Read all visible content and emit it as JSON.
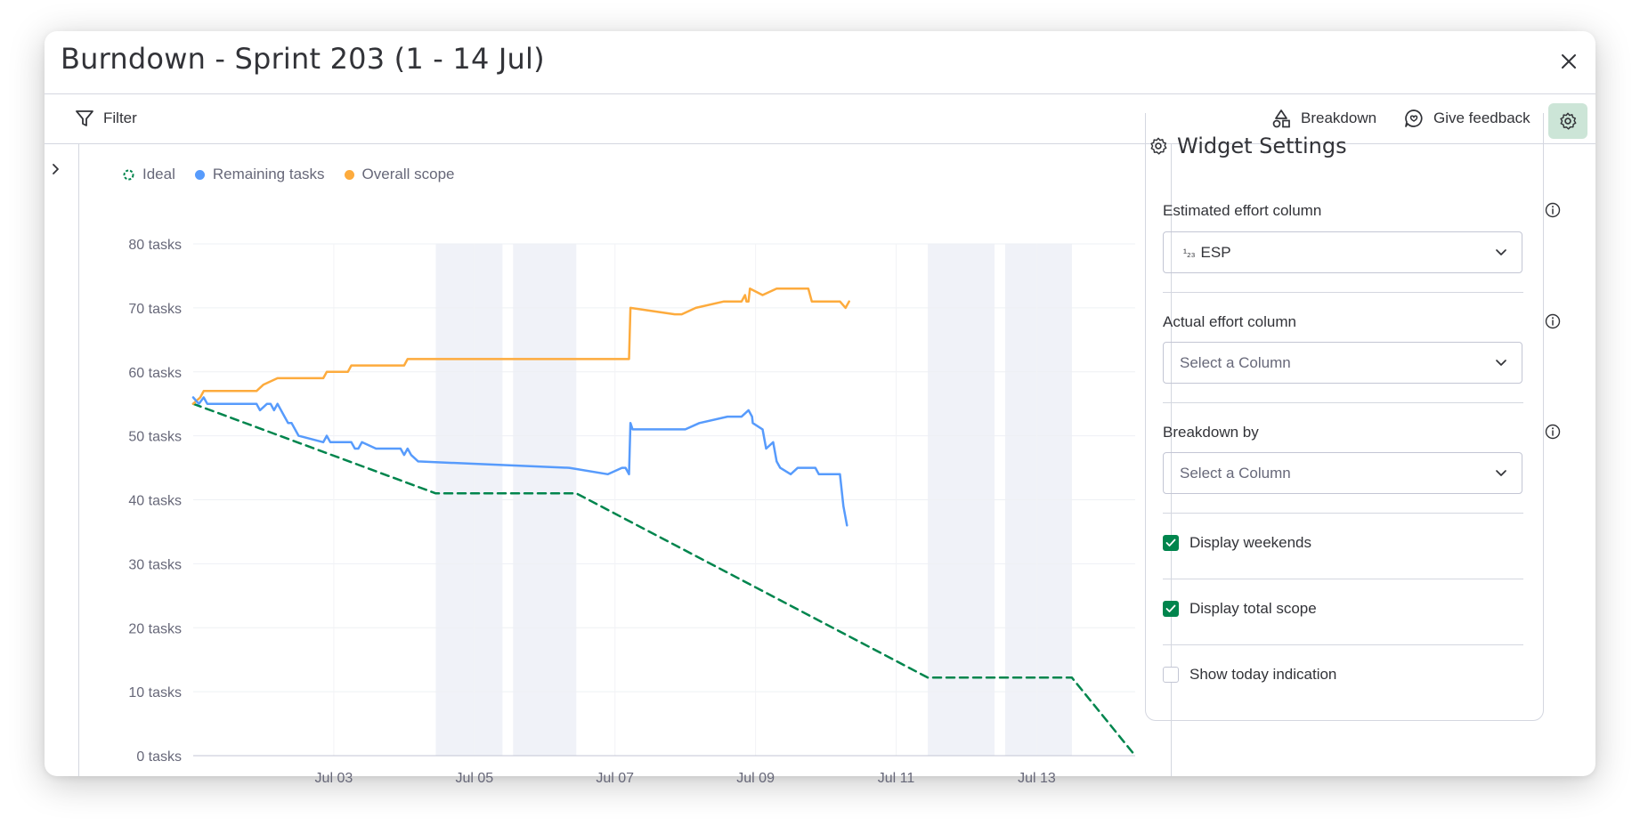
{
  "header": {
    "title": "Burndown - Sprint 203 (1 - 14 Jul)"
  },
  "toolbar": {
    "filter_label": "Filter",
    "breakdown_label": "Breakdown",
    "feedback_label": "Give feedback"
  },
  "legend": {
    "ideal": "Ideal",
    "remaining": "Remaining tasks",
    "scope": "Overall scope"
  },
  "colors": {
    "ideal": "#00854d",
    "remaining": "#579bfc",
    "scope": "#fdab3d",
    "accent": "#00854d",
    "weekend": "#f0f2f8"
  },
  "chart_data": {
    "type": "line",
    "title": "Burndown - Sprint 203 (1 - 14 Jul)",
    "ylim": [
      0,
      80
    ],
    "xlim": [
      0,
      13.4
    ],
    "y_ticks": [
      0,
      10,
      20,
      30,
      40,
      50,
      60,
      70,
      80
    ],
    "y_tick_labels": [
      "0 tasks",
      "10 tasks",
      "20 tasks",
      "30 tasks",
      "40 tasks",
      "50 tasks",
      "60 tasks",
      "70 tasks",
      "80 tasks"
    ],
    "x_ticks": [
      2,
      4,
      6,
      8,
      10,
      12
    ],
    "x_tick_labels": [
      "Jul 03",
      "Jul 05",
      "Jul 07",
      "Jul 09",
      "Jul 11",
      "Jul 13"
    ],
    "weekends": [
      [
        3.45,
        4.4
      ],
      [
        4.55,
        5.45
      ],
      [
        10.45,
        11.4
      ],
      [
        11.55,
        12.5
      ]
    ],
    "series": [
      {
        "name": "Ideal",
        "style": "dashed",
        "x": [
          0,
          3.45,
          5.45,
          10.45,
          12.5,
          13.4
        ],
        "y": [
          55,
          41,
          41,
          12.2,
          12.2,
          0
        ]
      },
      {
        "name": "Overall scope",
        "x": [
          0,
          0.1,
          0.15,
          0.2,
          0.9,
          1.0,
          1.2,
          1.85,
          1.9,
          2.2,
          2.25,
          2.6,
          3.0,
          3.05,
          6.2,
          6.22,
          6.85,
          6.95,
          7.15,
          7.55,
          7.8,
          7.85,
          7.87,
          7.9,
          7.92,
          8.1,
          8.3,
          8.6,
          8.75,
          8.8,
          8.83,
          9.2,
          9.28,
          9.33
        ],
        "y": [
          55,
          56,
          57,
          57,
          57,
          58,
          59,
          59,
          60,
          60,
          61,
          61,
          61,
          62,
          62,
          70,
          69,
          69,
          70,
          71,
          71,
          72,
          71,
          71,
          73,
          72,
          73,
          73,
          73,
          71,
          71,
          71,
          70,
          71
        ]
      },
      {
        "name": "Remaining tasks",
        "x": [
          0,
          0.08,
          0.15,
          0.2,
          0.9,
          0.95,
          1.05,
          1.1,
          1.15,
          1.2,
          1.3,
          1.35,
          1.4,
          1.5,
          1.85,
          1.9,
          1.95,
          2.25,
          2.3,
          2.35,
          2.4,
          2.6,
          2.7,
          2.95,
          3.0,
          3.05,
          3.1,
          3.2,
          5.35,
          5.9,
          6.1,
          6.15,
          6.2,
          6.22,
          6.25,
          6.9,
          7.0,
          7.2,
          7.6,
          7.8,
          7.9,
          7.95,
          7.96,
          8.1,
          8.15,
          8.25,
          8.3,
          8.35,
          8.5,
          8.6,
          8.85,
          8.9,
          9.2,
          9.25,
          9.3
        ],
        "y": [
          56,
          55,
          56,
          55,
          55,
          54,
          55,
          55,
          54,
          55,
          53,
          52,
          52,
          50,
          49,
          50,
          49,
          49,
          48,
          48,
          49,
          48,
          48,
          48,
          47,
          48,
          47,
          46,
          45,
          44,
          45,
          45,
          44,
          52,
          51,
          51,
          51,
          52,
          53,
          53,
          54,
          53,
          52,
          51,
          48,
          49,
          46,
          45,
          44,
          45,
          45,
          44,
          44,
          39,
          36
        ]
      }
    ]
  },
  "settings": {
    "title": "Widget Settings",
    "estimated_label": "Estimated effort column",
    "estimated_value": "ESP",
    "estimated_icon": "¹₂₃",
    "actual_label": "Actual effort column",
    "actual_placeholder": "Select a Column",
    "breakdown_label": "Breakdown by",
    "breakdown_placeholder": "Select a Column",
    "display_weekends": "Display weekends",
    "display_total_scope": "Display total scope",
    "show_today": "Show today indication"
  }
}
